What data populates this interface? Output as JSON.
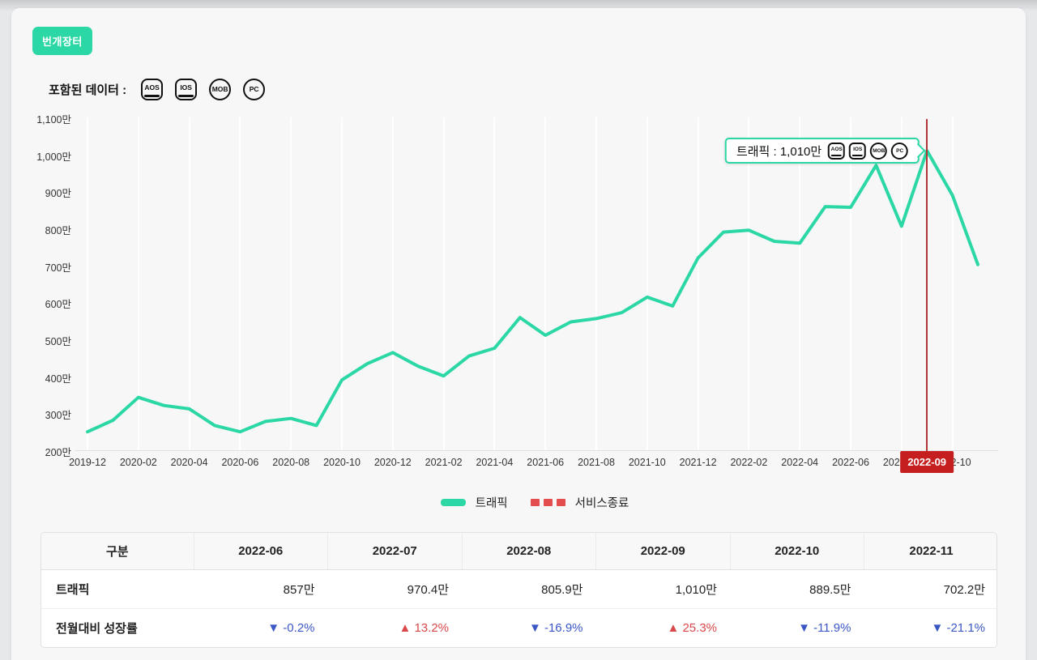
{
  "page": {
    "app_badge": "번개장터",
    "included_data_label": "포함된 데이터 :",
    "included_icons": [
      "AOS",
      "IOS",
      "MOB",
      "PC"
    ]
  },
  "chart_data": {
    "type": "line",
    "title": "",
    "xlabel": "",
    "ylabel": "",
    "unit": "만",
    "ylim": [
      200,
      1100
    ],
    "grid": "vertical-only",
    "legend_position": "bottom-center",
    "series": [
      {
        "name": "트래픽",
        "color": "#2bd7a4",
        "x": [
          "2019-12",
          "2020-01",
          "2020-02",
          "2020-03",
          "2020-04",
          "2020-05",
          "2020-06",
          "2020-07",
          "2020-08",
          "2020-09",
          "2020-10",
          "2020-11",
          "2020-12",
          "2021-01",
          "2021-02",
          "2021-03",
          "2021-04",
          "2021-05",
          "2021-06",
          "2021-07",
          "2021-08",
          "2021-09",
          "2021-10",
          "2021-11",
          "2021-12",
          "2022-01",
          "2022-02",
          "2022-03",
          "2022-04",
          "2022-05",
          "2022-06",
          "2022-07",
          "2022-08",
          "2022-09",
          "2022-10",
          "2022-11"
        ],
        "values": [
          250,
          281,
          343,
          321,
          312,
          267,
          250,
          278,
          286,
          267,
          390,
          434,
          464,
          427,
          401,
          455,
          476,
          559,
          511,
          547,
          556,
          572,
          614,
          590,
          720,
          790,
          795,
          765,
          760,
          859,
          857,
          970.4,
          805.9,
          1010,
          889.5,
          702.2
        ]
      }
    ],
    "x_tick_labels": [
      "2019-12",
      "2020-02",
      "2020-04",
      "2020-06",
      "2020-08",
      "2020-10",
      "2020-12",
      "2021-02",
      "2021-04",
      "2021-06",
      "2021-08",
      "2021-10",
      "2021-12",
      "2022-02",
      "2022-04",
      "2022-06",
      "2022-08",
      "2022-10"
    ],
    "y_tick_labels": [
      "200만",
      "300만",
      "400만",
      "500만",
      "600만",
      "700만",
      "800만",
      "900만",
      "1,000만",
      "1,100만"
    ],
    "marker": {
      "month": "2022-09",
      "label": "2022-09",
      "line_color": "#b03535",
      "badge_color": "#c61f1f"
    },
    "tooltip": {
      "text": "트래픽 : 1,010만",
      "icons": [
        "AOS",
        "IOS",
        "MOB",
        "PC"
      ]
    },
    "legend": [
      {
        "label": "트래픽",
        "color": "#2bd7a4",
        "style": "solid"
      },
      {
        "label": "서비스종료",
        "color": "#e34d4d",
        "style": "dashed"
      }
    ]
  },
  "table": {
    "headers": [
      "구분",
      "2022-06",
      "2022-07",
      "2022-08",
      "2022-09",
      "2022-10",
      "2022-11"
    ],
    "traffic_row": {
      "label": "트래픽",
      "values": [
        "857만",
        "970.4만",
        "805.9만",
        "1,010만",
        "889.5만",
        "702.2만"
      ]
    },
    "growth_row": {
      "label": "전월대비 성장률",
      "values": [
        {
          "dir": "down",
          "text": "-0.2%"
        },
        {
          "dir": "up",
          "text": "13.2%"
        },
        {
          "dir": "down",
          "text": "-16.9%"
        },
        {
          "dir": "up",
          "text": "25.3%"
        },
        {
          "dir": "down",
          "text": "-11.9%"
        },
        {
          "dir": "down",
          "text": "-21.1%"
        }
      ]
    },
    "colors": {
      "up": "#d9484a",
      "down": "#3a57c4"
    },
    "arrows": {
      "up": "▲",
      "down": "▼"
    }
  }
}
